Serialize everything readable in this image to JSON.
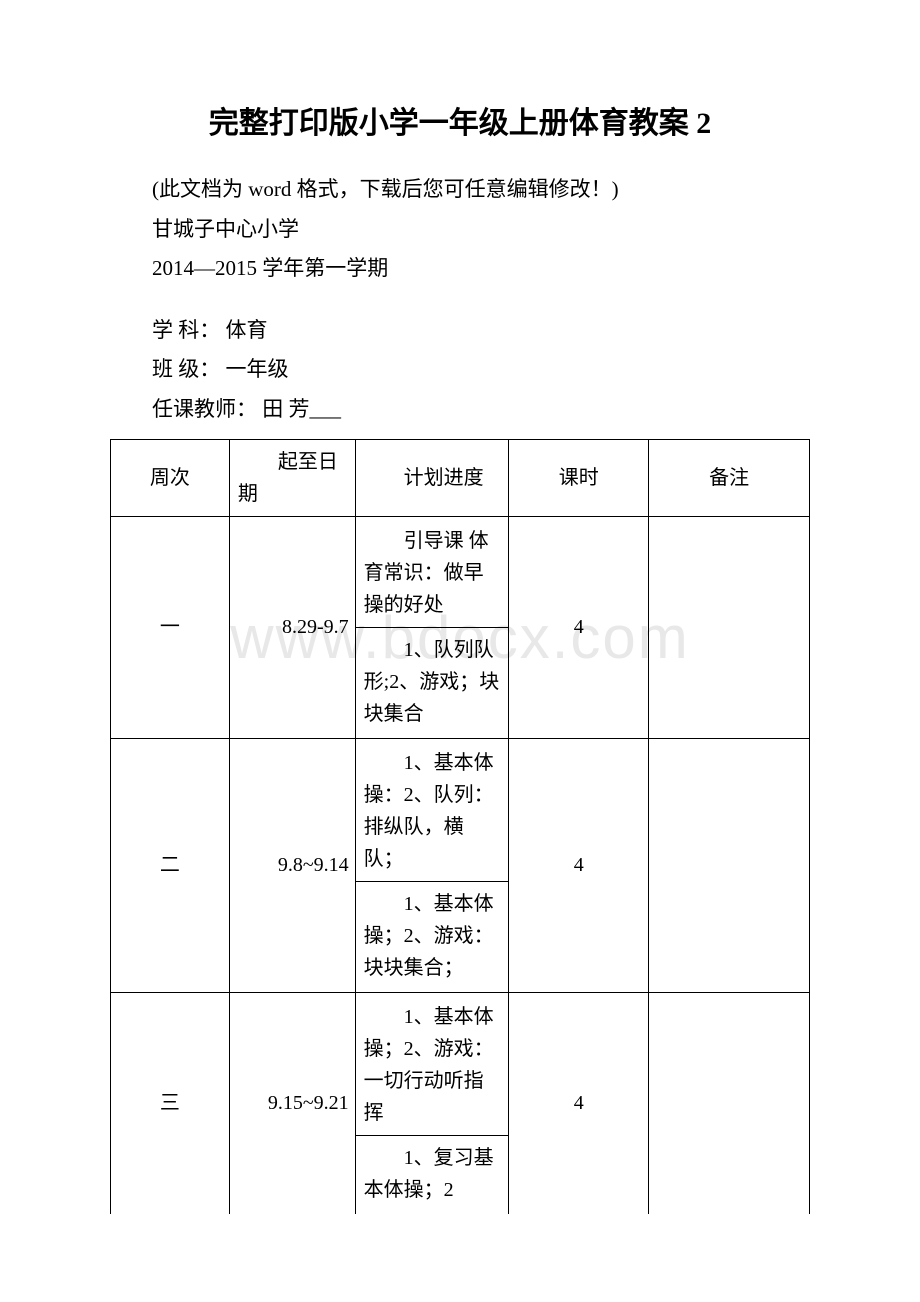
{
  "watermark": "www.bdocx.com",
  "title": "完整打印版小学一年级上册体育教案 2",
  "intro_lines": [
    "(此文档为 word 格式，下载后您可任意编辑修改！)",
    "甘城子中心小学",
    "2014—2015 学年第一学期"
  ],
  "info_lines": [
    "学 科：  体育",
    "班 级：  一年级",
    "任课教师：  田 芳___"
  ],
  "table": {
    "headers": [
      "周次",
      "起至日期",
      "计划进度",
      "课时",
      "备注"
    ],
    "rows": [
      {
        "week": "一",
        "date": "8.29-9.7",
        "plans": [
          "引导课 体育常识：做早操的好处",
          "1、队列队形;2、游戏；块块集合"
        ],
        "hours": "4",
        "note": ""
      },
      {
        "week": "二",
        "date": "9.8~9.14",
        "plans": [
          "1、基本体操：2、队列：排纵队，横队；",
          "1、基本体操；2、游戏：块块集合；"
        ],
        "hours": "4",
        "note": ""
      },
      {
        "week": "三",
        "date": "9.15~9.21",
        "plans": [
          "1、基本体操；2、游戏：一切行动听指挥",
          "1、复习基本体操；2"
        ],
        "hours": "4",
        "note": "",
        "cut": true
      }
    ]
  }
}
